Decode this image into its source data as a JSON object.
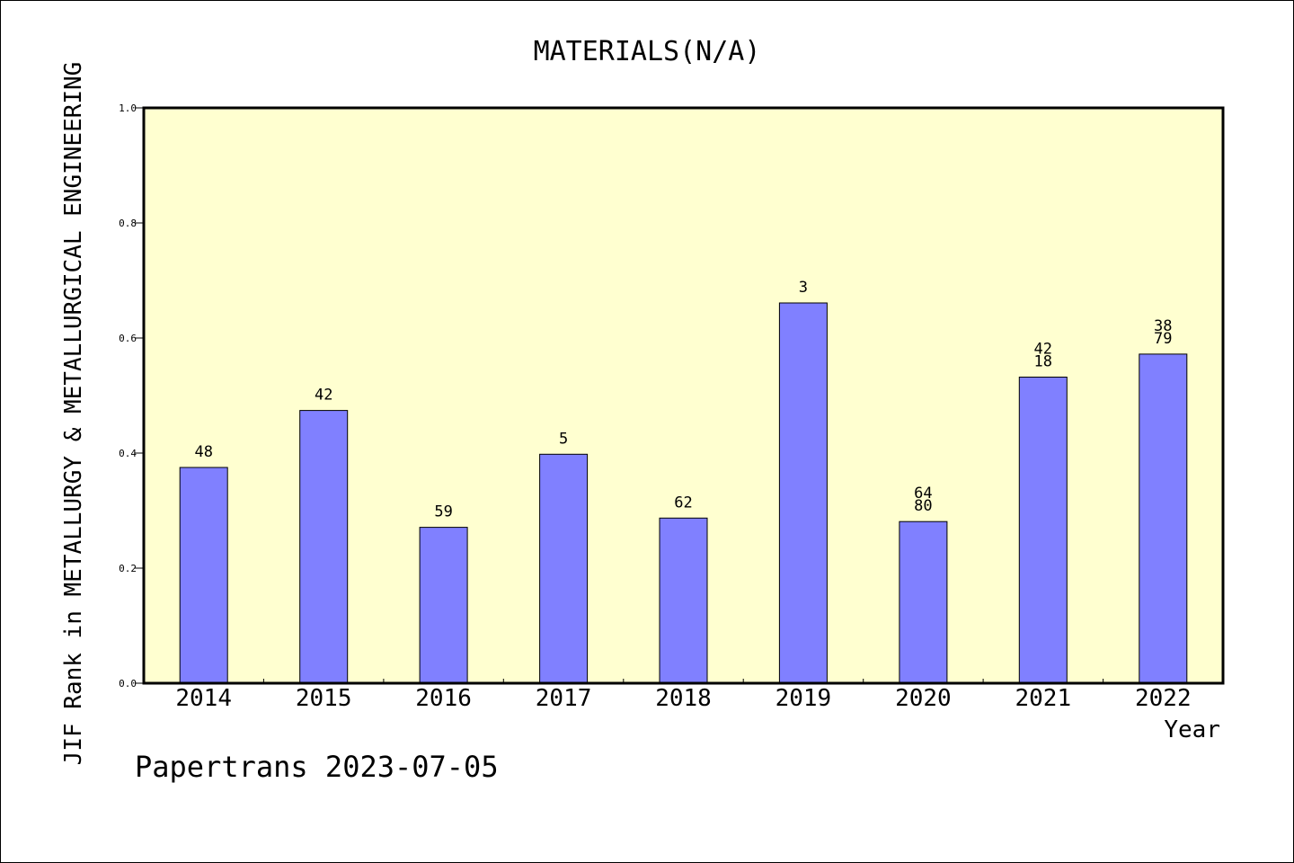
{
  "chart_data": {
    "type": "bar",
    "title": "MATERIALS(N/A)",
    "xlabel": "Year",
    "ylabel": "JIF Rank in METALLURGY & METALLURGICAL ENGINEERING",
    "ylim": [
      0,
      1.0
    ],
    "yticks": [
      "0.0",
      "0.2",
      "0.4",
      "0.6",
      "0.8",
      "1.0"
    ],
    "categories": [
      "2014",
      "2015",
      "2016",
      "2017",
      "2018",
      "2019",
      "2020",
      "2021",
      "2022"
    ],
    "values": [
      0.375,
      0.474,
      0.271,
      0.398,
      0.287,
      0.661,
      0.281,
      0.532,
      0.572
    ],
    "data_labels": [
      [
        "48"
      ],
      [
        "42"
      ],
      [
        "59"
      ],
      [
        "5"
      ],
      [
        "62"
      ],
      [
        "3"
      ],
      [
        "64",
        "80"
      ],
      [
        "42",
        "18"
      ],
      [
        "38",
        "79"
      ]
    ],
    "bar_color": "#8080ff",
    "plot_background": "#ffffd0",
    "grid": false
  },
  "footer": "Papertrans 2023-07-05"
}
